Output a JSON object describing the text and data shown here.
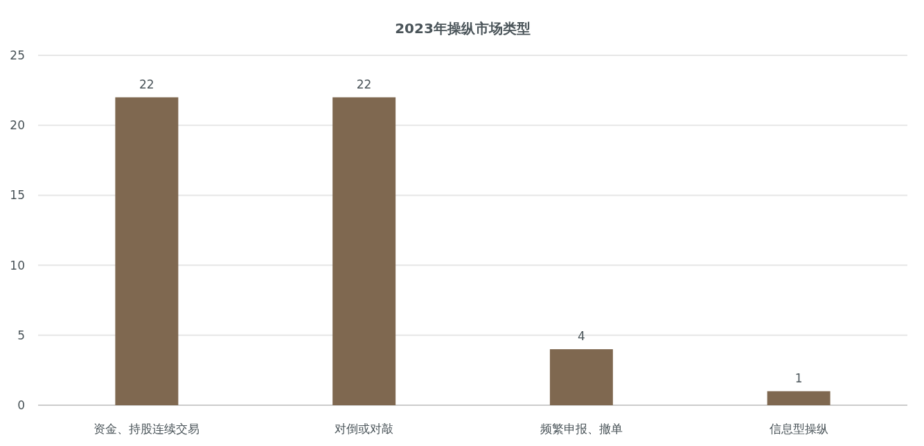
{
  "chart_data": {
    "type": "bar",
    "title": "2023年操纵市场类型",
    "categories": [
      "资金、持股连续交易",
      "对倒或对敲",
      "频繁申报、撤单",
      "信息型操纵"
    ],
    "values": [
      22,
      22,
      4,
      1
    ],
    "color": "#7f6850",
    "ylim": [
      0,
      25
    ],
    "yticks": [
      0,
      5,
      10,
      15,
      20,
      25
    ],
    "grid": "y",
    "data_labels": true
  }
}
